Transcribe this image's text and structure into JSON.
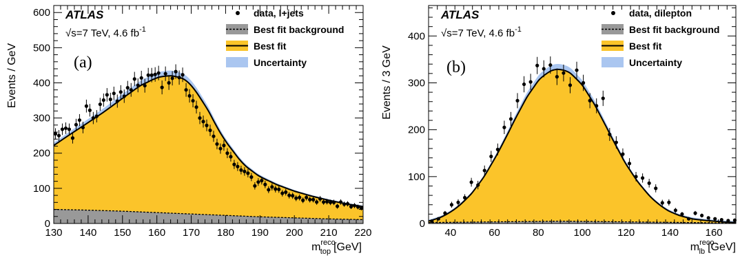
{
  "colors": {
    "fit": "#fbc42a",
    "background": "#999999",
    "uncertainty": "#aac6f0",
    "data": "#000000"
  },
  "chart_data": [
    {
      "type": "line",
      "panel_label": "(a)",
      "experiment": "ATLAS",
      "energy_lumi": "√s=7 TeV, 4.6 fb",
      "lumi_exp": "-1",
      "ylabel": "Events / GeV",
      "xlabel_var": "m",
      "xlabel_sup": "reco",
      "xlabel_sub": "top",
      "xlabel_unit": "[GeV]",
      "xlim": [
        130,
        220
      ],
      "ylim": [
        0,
        620
      ],
      "xticks": [
        130,
        140,
        150,
        160,
        170,
        180,
        190,
        200,
        210,
        220
      ],
      "yticks": [
        0,
        100,
        200,
        300,
        400,
        500,
        600
      ],
      "legend": {
        "data": "data, l+jets",
        "background": "Best fit background",
        "fit": "Best fit",
        "uncertainty": "Uncertainty"
      },
      "data_x": [
        130.5,
        131.5,
        132.5,
        133.5,
        134.5,
        135.5,
        136.5,
        137.5,
        138.5,
        139.5,
        140.5,
        141.5,
        142.5,
        143.5,
        144.5,
        145.5,
        146.5,
        147.5,
        148.5,
        149.5,
        150.5,
        151.5,
        152.5,
        153.5,
        154.5,
        155.5,
        156.5,
        157.5,
        158.5,
        159.5,
        160.5,
        161.5,
        162.5,
        163.5,
        164.5,
        165.5,
        166.5,
        167.5,
        168.5,
        169.5,
        170.5,
        171.5,
        172.5,
        173.5,
        174.5,
        175.5,
        176.5,
        177.5,
        178.5,
        179.5,
        180.5,
        181.5,
        182.5,
        183.5,
        184.5,
        185.5,
        186.5,
        187.5,
        188.5,
        189.5,
        190.5,
        191.5,
        192.5,
        193.5,
        194.5,
        195.5,
        196.5,
        197.5,
        198.5,
        199.5,
        200.5,
        201.5,
        202.5,
        203.5,
        204.5,
        205.5,
        206.5,
        207.5,
        208.5,
        209.5,
        210.5,
        211.5,
        212.5,
        213.5,
        214.5,
        215.5,
        216.5,
        217.5,
        218.5,
        219.5
      ],
      "data_y": [
        255,
        250,
        268,
        271,
        268,
        243,
        281,
        294,
        273,
        334,
        322,
        300,
        305,
        339,
        351,
        366,
        353,
        370,
        348,
        374,
        362,
        386,
        380,
        411,
        393,
        414,
        392,
        422,
        422,
        424,
        428,
        387,
        426,
        400,
        413,
        432,
        415,
        423,
        380,
        363,
        349,
        331,
        300,
        290,
        279,
        265,
        248,
        226,
        213,
        222,
        200,
        190,
        168,
        162,
        152,
        148,
        143,
        132,
        107,
        118,
        122,
        111,
        96,
        104,
        98,
        97,
        86,
        89,
        80,
        79,
        72,
        74,
        66,
        74,
        68,
        68,
        61,
        70,
        61,
        62,
        60,
        60,
        49,
        61,
        55,
        56,
        48,
        51,
        47,
        44
      ],
      "fit_x": [
        130,
        135,
        140,
        145,
        150,
        155,
        160,
        163,
        165,
        168,
        170,
        172,
        175,
        178,
        180,
        183,
        185,
        188,
        190,
        195,
        200,
        205,
        210,
        215,
        220
      ],
      "fit_y": [
        222,
        255,
        287,
        320,
        356,
        391,
        415,
        420,
        420,
        410,
        393,
        367,
        320,
        265,
        234,
        195,
        170,
        147,
        133,
        110,
        92,
        78,
        66,
        56,
        48
      ],
      "background_x": [
        130,
        140,
        150,
        160,
        170,
        180,
        190,
        200,
        210,
        220
      ],
      "background_y": [
        40,
        38,
        35,
        31,
        27,
        23,
        19,
        16,
        13,
        11
      ]
    },
    {
      "type": "line",
      "panel_label": "(b)",
      "experiment": "ATLAS",
      "energy_lumi": "√s=7 TeV, 4.6 fb",
      "lumi_exp": "-1",
      "ylabel": "Events / 3 GeV",
      "xlabel_var": "m",
      "xlabel_sup": "reco",
      "xlabel_sub": "lb",
      "xlabel_unit": "[GeV]",
      "xlim": [
        30,
        170
      ],
      "ylim": [
        0,
        465
      ],
      "xticks": [
        40,
        60,
        80,
        100,
        120,
        140,
        160
      ],
      "yticks": [
        0,
        100,
        200,
        300,
        400
      ],
      "legend": {
        "data": "data, dilepton",
        "background": "Best fit background",
        "fit": "Best fit",
        "uncertainty": "Uncertainty"
      },
      "data_x": [
        31.5,
        34.5,
        37.5,
        40.5,
        43.5,
        46.5,
        49.5,
        52.5,
        55.5,
        58.5,
        61.5,
        64.5,
        67.5,
        70.5,
        73.5,
        76.5,
        79.5,
        82.5,
        85.5,
        88.5,
        91.5,
        94.5,
        97.5,
        100.5,
        103.5,
        106.5,
        109.5,
        112.5,
        115.5,
        118.5,
        121.5,
        124.5,
        127.5,
        130.5,
        133.5,
        136.5,
        139.5,
        142.5,
        145.5,
        148.5,
        151.5,
        154.5,
        157.5,
        160.5,
        163.5,
        166.5,
        169.5
      ],
      "data_y": [
        5,
        10,
        22,
        40,
        45,
        55,
        88,
        82,
        113,
        143,
        158,
        205,
        223,
        262,
        297,
        302,
        337,
        330,
        338,
        313,
        321,
        295,
        327,
        300,
        262,
        251,
        267,
        190,
        173,
        148,
        128,
        100,
        97,
        86,
        75,
        44,
        45,
        28,
        20,
        10,
        22,
        17,
        12,
        10,
        8,
        6,
        7
      ],
      "fit_x": [
        30,
        35,
        40,
        45,
        50,
        55,
        60,
        65,
        70,
        75,
        80,
        85,
        90,
        95,
        100,
        105,
        110,
        115,
        120,
        125,
        130,
        135,
        140,
        145,
        150,
        155,
        160,
        165,
        170
      ],
      "fit_y": [
        5,
        12,
        24,
        42,
        66,
        98,
        137,
        181,
        228,
        271,
        305,
        325,
        330,
        320,
        295,
        259,
        215,
        169,
        126,
        91,
        62,
        40,
        25,
        16,
        10,
        7,
        5,
        3,
        2
      ],
      "background_x": [
        30,
        50,
        70,
        90,
        110,
        130,
        150,
        170
      ],
      "background_y": [
        2,
        3,
        4,
        5,
        4,
        3,
        2,
        1
      ]
    }
  ]
}
